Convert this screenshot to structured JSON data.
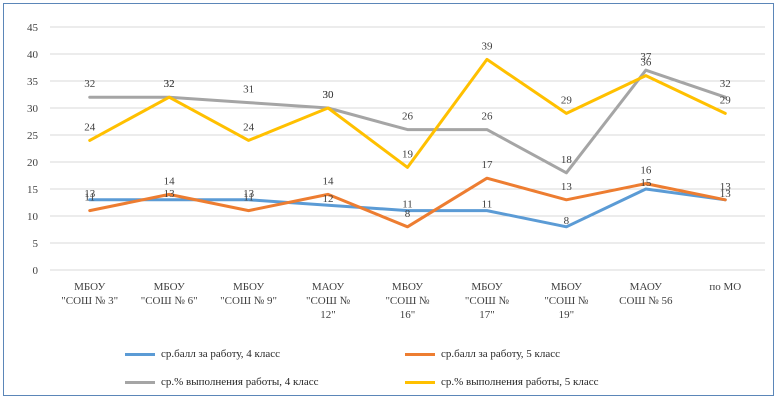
{
  "chart_data": {
    "type": "line",
    "categories": [
      [
        "МБОУ",
        "\"СОШ № 3\""
      ],
      [
        "МБОУ",
        "\"СОШ № 6\""
      ],
      [
        "МБОУ",
        "\"СОШ № 9\""
      ],
      [
        "МАОУ",
        "\"СОШ №",
        "12\""
      ],
      [
        "МБОУ",
        "\"СОШ №",
        "16\""
      ],
      [
        "МБОУ",
        "\"СОШ №",
        "17\""
      ],
      [
        "МБОУ",
        "\"СОШ №",
        "19\""
      ],
      [
        "МАОУ",
        "СОШ № 56"
      ],
      [
        "по МО"
      ]
    ],
    "ylim": [
      0,
      45
    ],
    "yticks": [
      0,
      5,
      10,
      15,
      20,
      25,
      30,
      35,
      40,
      45
    ],
    "grid": true,
    "legend_position": "bottom",
    "series": [
      {
        "name": "ср.балл за работу, 4 класс",
        "color": "#5b9bd5",
        "values": [
          13,
          13,
          13,
          12,
          11,
          11,
          8,
          15,
          13
        ]
      },
      {
        "name": "ср.балл за работу, 5 класс",
        "color": "#ed7d31",
        "values": [
          11,
          14,
          11,
          14,
          8,
          17,
          13,
          16,
          13
        ]
      },
      {
        "name": "ср.% выполнения работы, 4 класс",
        "color": "#a5a5a5",
        "values": [
          32,
          32,
          31,
          30,
          26,
          26,
          18,
          37,
          32
        ]
      },
      {
        "name": "ср.% выполнения работы, 5 класс",
        "color": "#ffc000",
        "values": [
          24,
          32,
          24,
          30,
          19,
          39,
          29,
          36,
          29
        ]
      }
    ]
  }
}
